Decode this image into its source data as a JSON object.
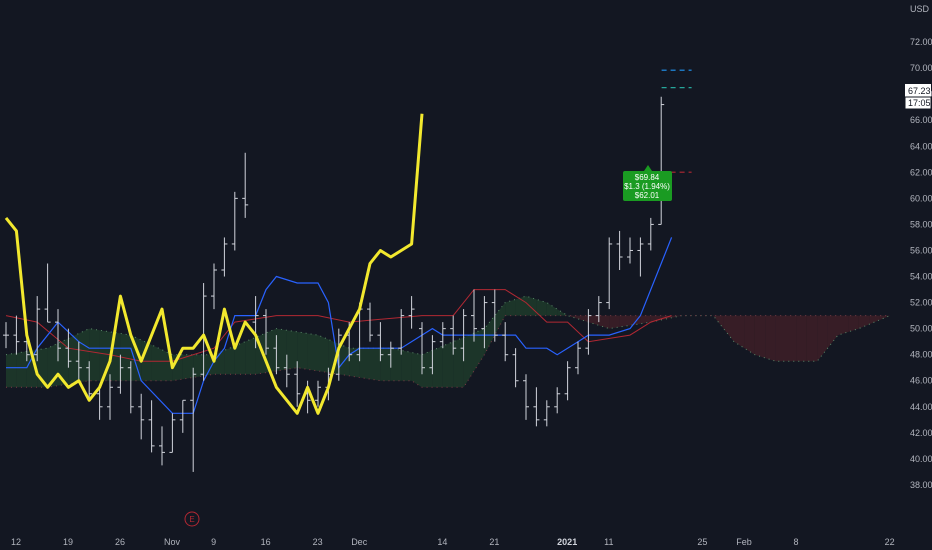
{
  "currency": "USD",
  "colors": {
    "background": "#131722",
    "bars": "#d1d4dc",
    "yellow_line": "#f2e82e",
    "conversion_line": "#2962ff",
    "base_line": "#b22833",
    "cloud_bull": "#1e3b2a",
    "cloud_bear": "#3e1f27",
    "span_a": "#5a8a6a",
    "span_b": "#7a3b45",
    "tooltip_bg": "#1a9b22",
    "target_blue": "#2196f3",
    "target_green": "#26a69a",
    "stop_red": "#b22833"
  },
  "price_tag": {
    "price": "67.23",
    "countdown": "17:05"
  },
  "tooltip": {
    "line1": "$69.84",
    "line2": "$1.3 (1.94%)",
    "line3": "$62.01"
  },
  "earnings_marker": "E",
  "chart_data": {
    "type": "ohlc",
    "ylim": [
      36.5,
      73.5
    ],
    "y_ticks": [
      "38.00",
      "40.00",
      "42.00",
      "44.00",
      "46.00",
      "48.00",
      "50.00",
      "52.00",
      "54.00",
      "56.00",
      "58.00",
      "60.00",
      "62.00",
      "64.00",
      "66.00",
      "68.00",
      "70.00",
      "72.00"
    ],
    "x_ticks": [
      {
        "i": 0,
        "label": "12"
      },
      {
        "i": 5,
        "label": "19"
      },
      {
        "i": 10,
        "label": "26"
      },
      {
        "i": 15,
        "label": "Nov"
      },
      {
        "i": 19,
        "label": "9"
      },
      {
        "i": 24,
        "label": "16"
      },
      {
        "i": 29,
        "label": "23"
      },
      {
        "i": 33,
        "label": "Dec"
      },
      {
        "i": 41,
        "label": "14"
      },
      {
        "i": 46,
        "label": "21"
      },
      {
        "i": 53,
        "label": "2021",
        "bold": true
      },
      {
        "i": 57,
        "label": "11"
      },
      {
        "i": 66,
        "label": "25"
      },
      {
        "i": 70,
        "label": "Feb"
      },
      {
        "i": 75,
        "label": "8"
      },
      {
        "i": 84,
        "label": "22"
      }
    ],
    "ohlc": [
      [
        49.5,
        50.5,
        48.5,
        49.5
      ],
      [
        49.5,
        51.0,
        48.0,
        49.0
      ],
      [
        49.0,
        50.0,
        47.5,
        48.0
      ],
      [
        48.0,
        52.5,
        47.5,
        51.5
      ],
      [
        51.5,
        55.0,
        50.5,
        50.5
      ],
      [
        50.5,
        51.5,
        47.5,
        48.5
      ],
      [
        48.5,
        50.0,
        47.0,
        47.5
      ],
      [
        47.5,
        49.0,
        46.0,
        47.0
      ],
      [
        47.0,
        47.5,
        44.5,
        45.0
      ],
      [
        45.0,
        45.5,
        43.0,
        44.0
      ],
      [
        44.0,
        46.5,
        43.0,
        45.5
      ],
      [
        45.5,
        48.0,
        45.0,
        47.0
      ],
      [
        47.0,
        47.5,
        43.5,
        44.0
      ],
      [
        44.0,
        45.0,
        41.5,
        43.0
      ],
      [
        43.0,
        44.5,
        40.5,
        41.0
      ],
      [
        41.0,
        42.5,
        39.5,
        40.5
      ],
      [
        40.5,
        43.5,
        40.5,
        43.0
      ],
      [
        43.0,
        44.5,
        42.0,
        44.5
      ],
      [
        44.5,
        47.0,
        39.0,
        46.5
      ],
      [
        46.5,
        53.5,
        46.0,
        52.5
      ],
      [
        52.5,
        55.0,
        51.5,
        54.5
      ],
      [
        54.5,
        57.0,
        54.0,
        56.5
      ],
      [
        56.5,
        60.5,
        56.0,
        60.0
      ],
      [
        60.0,
        63.5,
        58.5,
        59.5
      ],
      [
        50.5,
        52.5,
        48.5,
        51.0
      ],
      [
        51.0,
        51.5,
        48.0,
        48.5
      ],
      [
        48.5,
        49.5,
        46.5,
        47.0
      ],
      [
        47.0,
        48.0,
        45.5,
        46.5
      ],
      [
        46.5,
        47.5,
        44.0,
        45.0
      ],
      [
        45.0,
        46.0,
        43.5,
        44.5
      ],
      [
        44.5,
        46.0,
        44.0,
        45.5
      ],
      [
        45.5,
        47.0,
        44.5,
        46.5
      ],
      [
        46.5,
        50.0,
        46.0,
        49.5
      ],
      [
        49.5,
        50.5,
        47.5,
        48.0
      ],
      [
        48.0,
        52.0,
        47.5,
        51.5
      ],
      [
        51.5,
        52.0,
        49.0,
        49.5
      ],
      [
        49.5,
        50.5,
        47.5,
        48.0
      ],
      [
        48.0,
        49.0,
        47.0,
        48.5
      ],
      [
        48.5,
        51.5,
        48.0,
        51.0
      ],
      [
        51.0,
        52.5,
        50.0,
        51.5
      ],
      [
        50.0,
        50.5,
        46.5,
        47.0
      ],
      [
        47.0,
        49.5,
        46.5,
        49.0
      ],
      [
        49.0,
        50.5,
        48.5,
        50.0
      ],
      [
        50.0,
        51.0,
        48.0,
        48.5
      ],
      [
        48.5,
        51.5,
        47.5,
        51.0
      ],
      [
        51.0,
        53.0,
        49.0,
        50.0
      ],
      [
        50.0,
        52.5,
        48.5,
        52.0
      ],
      [
        52.0,
        53.0,
        49.0,
        49.5
      ],
      [
        49.5,
        50.5,
        47.5,
        48.0
      ],
      [
        48.0,
        48.5,
        45.5,
        46.0
      ],
      [
        46.0,
        46.5,
        43.0,
        44.0
      ],
      [
        44.0,
        45.5,
        42.5,
        43.0
      ],
      [
        43.0,
        44.5,
        42.5,
        44.0
      ],
      [
        44.0,
        45.5,
        43.5,
        45.0
      ],
      [
        45.0,
        47.5,
        44.5,
        47.0
      ],
      [
        47.0,
        49.0,
        46.5,
        48.5
      ],
      [
        48.5,
        51.5,
        48.0,
        51.0
      ],
      [
        51.0,
        52.5,
        50.5,
        52.0
      ],
      [
        52.0,
        57.0,
        51.5,
        56.5
      ],
      [
        56.5,
        57.5,
        54.5,
        55.5
      ],
      [
        55.5,
        57.0,
        55.0,
        56.0
      ],
      [
        56.0,
        57.0,
        54.0,
        56.5
      ],
      [
        56.5,
        58.5,
        56.0,
        58.0
      ],
      [
        58.0,
        67.8,
        58.0,
        67.2
      ]
    ],
    "yellow_line": [
      58.5,
      57.5,
      49.5,
      46.5,
      45.5,
      46.5,
      45.5,
      46.0,
      44.5,
      45.5,
      47.5,
      52.5,
      49.5,
      47.5,
      49.5,
      51.5,
      47.0,
      48.5,
      48.5,
      49.5,
      47.5,
      51.5,
      48.5,
      50.5,
      49.5,
      47.5,
      45.5,
      44.5,
      43.5,
      45.5,
      43.5,
      45.5,
      48.5,
      50.0,
      51.5,
      55.0,
      56.0,
      55.5,
      56.0,
      56.5,
      66.5
    ],
    "conversion_line": [
      [
        0,
        47.0
      ],
      [
        2,
        47.0
      ],
      [
        3,
        48.5
      ],
      [
        5,
        50.5
      ],
      [
        7,
        49.0
      ],
      [
        8,
        48.5
      ],
      [
        12,
        48.5
      ],
      [
        13,
        46.0
      ],
      [
        16,
        43.5
      ],
      [
        18,
        43.5
      ],
      [
        19,
        46.0
      ],
      [
        20,
        47.5
      ],
      [
        21,
        48.5
      ],
      [
        22,
        51.0
      ],
      [
        24,
        51.0
      ],
      [
        25,
        53.0
      ],
      [
        26,
        54.0
      ],
      [
        28,
        53.5
      ],
      [
        30,
        53.5
      ],
      [
        31,
        52.0
      ],
      [
        32,
        47.0
      ],
      [
        33,
        48.0
      ],
      [
        34,
        48.5
      ],
      [
        36,
        48.5
      ],
      [
        38,
        48.5
      ],
      [
        40,
        49.5
      ],
      [
        41,
        50.0
      ],
      [
        42,
        49.5
      ],
      [
        43,
        49.5
      ],
      [
        45,
        49.5
      ],
      [
        49,
        49.5
      ],
      [
        50,
        48.5
      ],
      [
        52,
        48.5
      ],
      [
        53,
        48.0
      ],
      [
        55,
        49.0
      ],
      [
        56,
        49.5
      ],
      [
        58,
        49.5
      ],
      [
        60,
        50.0
      ],
      [
        61,
        51.0
      ],
      [
        63,
        55.0
      ],
      [
        64,
        57.0
      ]
    ],
    "base_line": [
      [
        0,
        51.0
      ],
      [
        3,
        50.5
      ],
      [
        6,
        48.5
      ],
      [
        10,
        48.0
      ],
      [
        13,
        47.5
      ],
      [
        16,
        47.5
      ],
      [
        20,
        48.5
      ],
      [
        22,
        50.5
      ],
      [
        26,
        51.0
      ],
      [
        30,
        51.0
      ],
      [
        33,
        50.5
      ],
      [
        40,
        51.0
      ],
      [
        43,
        51.0
      ],
      [
        45,
        53.0
      ],
      [
        48,
        53.0
      ],
      [
        50,
        52.0
      ],
      [
        52,
        50.5
      ],
      [
        54,
        50.5
      ],
      [
        56,
        49.0
      ],
      [
        60,
        49.5
      ],
      [
        62,
        50.5
      ],
      [
        64,
        51.0
      ]
    ],
    "span_a": [
      [
        0,
        48.0
      ],
      [
        4,
        48.5
      ],
      [
        8,
        50.0
      ],
      [
        12,
        49.5
      ],
      [
        16,
        48.0
      ],
      [
        20,
        48.0
      ],
      [
        23,
        49.0
      ],
      [
        26,
        50.0
      ],
      [
        30,
        49.5
      ],
      [
        33,
        48.5
      ],
      [
        37,
        48.5
      ],
      [
        40,
        48.0
      ],
      [
        43,
        49.0
      ],
      [
        46,
        50.0
      ],
      [
        48,
        52.0
      ],
      [
        50,
        52.5
      ],
      [
        52,
        52.0
      ],
      [
        54,
        51.0
      ],
      [
        58,
        50.0
      ],
      [
        62,
        50.5
      ],
      [
        65,
        51.0
      ],
      [
        67,
        51.0
      ],
      [
        68,
        51.0
      ],
      [
        70,
        49.0
      ],
      [
        72,
        48.0
      ],
      [
        74,
        47.5
      ],
      [
        78,
        47.5
      ],
      [
        80,
        49.5
      ],
      [
        82,
        50.0
      ],
      [
        85,
        51.0
      ]
    ],
    "span_b": [
      [
        0,
        45.5
      ],
      [
        4,
        45.5
      ],
      [
        8,
        46.0
      ],
      [
        12,
        46.0
      ],
      [
        16,
        46.0
      ],
      [
        20,
        46.5
      ],
      [
        24,
        46.5
      ],
      [
        28,
        47.0
      ],
      [
        32,
        46.5
      ],
      [
        36,
        46.0
      ],
      [
        39,
        46.0
      ],
      [
        40,
        45.5
      ],
      [
        44,
        45.5
      ],
      [
        46,
        48.0
      ],
      [
        48,
        51.0
      ],
      [
        52,
        51.0
      ],
      [
        54,
        51.0
      ],
      [
        58,
        51.0
      ],
      [
        62,
        51.0
      ],
      [
        65,
        51.0
      ],
      [
        67,
        51.0
      ],
      [
        70,
        51.0
      ],
      [
        74,
        51.0
      ],
      [
        78,
        51.0
      ],
      [
        82,
        51.0
      ],
      [
        85,
        51.0
      ]
    ],
    "targets": {
      "blue": 69.84,
      "green": 68.5,
      "red": 62.01,
      "bar_index": 64
    },
    "earnings_index": 17
  }
}
